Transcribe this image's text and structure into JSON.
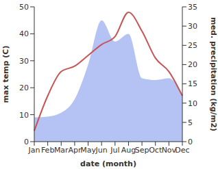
{
  "chart_data": {
    "type": "line",
    "x_label": "date (month)",
    "y_label": "max temp (C)",
    "y2_label": "med. precipitation (kg/m2)",
    "categories": [
      "Jan",
      "Feb",
      "Mar",
      "Apr",
      "May",
      "Jun",
      "Jul",
      "Aug",
      "Sep",
      "Oct",
      "Nov",
      "Dec"
    ],
    "series": [
      {
        "name": "med. precipitation",
        "type": "area",
        "axis": "y2",
        "color": "#b4c3f3",
        "values": [
          6.3,
          6.5,
          7.5,
          11,
          20,
          31.5,
          26,
          28,
          16.5,
          16,
          16.5,
          12
        ]
      },
      {
        "name": "max temp",
        "type": "line",
        "color": "#c85353",
        "values": [
          4,
          17,
          26,
          28,
          32,
          36,
          39,
          48,
          41,
          31,
          26,
          17
        ]
      }
    ],
    "ylim": [
      0,
      50
    ],
    "yticks": [
      0,
      10,
      20,
      30,
      40,
      50
    ],
    "y2lim": [
      0,
      35
    ],
    "y2ticks": [
      0,
      5,
      10,
      15,
      20,
      25,
      30,
      35
    ],
    "grid": false
  }
}
